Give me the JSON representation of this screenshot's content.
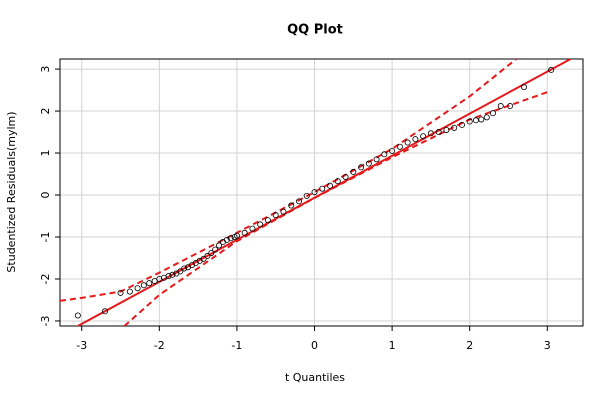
{
  "chart_data": {
    "type": "scatter",
    "title": "QQ Plot",
    "x_label": "t Quantiles",
    "y_label": "Studentized Residuals(mylm)",
    "xlim": [
      -3.28,
      3.46
    ],
    "ylim": [
      -3.12,
      3.24
    ],
    "xticks": [
      -3,
      -2,
      -1,
      0,
      1,
      2,
      3
    ],
    "yticks": [
      -3,
      -2,
      -1,
      0,
      1,
      2,
      3
    ],
    "grid": true,
    "color": "#000000",
    "x": [
      -3.05,
      -2.7,
      -2.5,
      -2.38,
      -2.28,
      -2.2,
      -2.13,
      -2.06,
      -2.0,
      -1.94,
      -1.88,
      -1.83,
      -1.78,
      -1.73,
      -1.68,
      -1.63,
      -1.58,
      -1.53,
      -1.48,
      -1.43,
      -1.38,
      -1.33,
      -1.28,
      -1.23,
      -1.18,
      -1.13,
      -1.08,
      -1.03,
      -1.0,
      -0.9,
      -0.8,
      -0.7,
      -0.6,
      -0.5,
      -0.4,
      -0.3,
      -0.2,
      -0.1,
      0.0,
      0.1,
      0.2,
      0.3,
      0.4,
      0.5,
      0.6,
      0.7,
      0.8,
      0.9,
      1.0,
      1.1,
      1.2,
      1.3,
      1.4,
      1.5,
      1.6,
      1.7,
      1.8,
      1.9,
      2.0,
      2.08,
      2.15,
      2.22,
      2.3,
      2.4,
      2.52,
      2.7,
      3.05
    ],
    "values": [
      -2.87,
      -2.77,
      -2.33,
      -2.3,
      -2.22,
      -2.15,
      -2.1,
      -2.05,
      -2.0,
      -1.97,
      -1.93,
      -1.9,
      -1.87,
      -1.82,
      -1.75,
      -1.72,
      -1.67,
      -1.62,
      -1.57,
      -1.52,
      -1.45,
      -1.38,
      -1.3,
      -1.2,
      -1.12,
      -1.07,
      -1.03,
      -1.0,
      -0.97,
      -0.9,
      -0.8,
      -0.7,
      -0.6,
      -0.48,
      -0.4,
      -0.25,
      -0.15,
      -0.02,
      0.07,
      0.15,
      0.22,
      0.33,
      0.43,
      0.55,
      0.66,
      0.75,
      0.85,
      0.97,
      1.05,
      1.15,
      1.25,
      1.33,
      1.4,
      1.47,
      1.5,
      1.55,
      1.6,
      1.67,
      1.75,
      1.78,
      1.8,
      1.85,
      1.95,
      2.12,
      2.12,
      2.57,
      2.98
    ],
    "reference_line": {
      "color": "#e41a1c",
      "x": [
        -3.28,
        3.46
      ],
      "values": [
        -3.35,
        3.4
      ]
    },
    "bands": [
      {
        "color": "#e41a1c",
        "x": [
          -3.28,
          -3.0,
          -2.5,
          -2.0,
          -1.0,
          0.0,
          1.0,
          2.0,
          2.6
        ],
        "values": [
          -2.52,
          -2.45,
          -2.3,
          -1.85,
          -0.9,
          0.07,
          1.1,
          2.35,
          3.24
        ]
      },
      {
        "color": "#e41a1c",
        "x": [
          -2.45,
          -2.0,
          -1.0,
          0.0,
          1.0,
          2.0,
          3.0
        ],
        "values": [
          -3.12,
          -2.38,
          -1.1,
          -0.07,
          0.9,
          1.8,
          2.45
        ]
      }
    ]
  }
}
